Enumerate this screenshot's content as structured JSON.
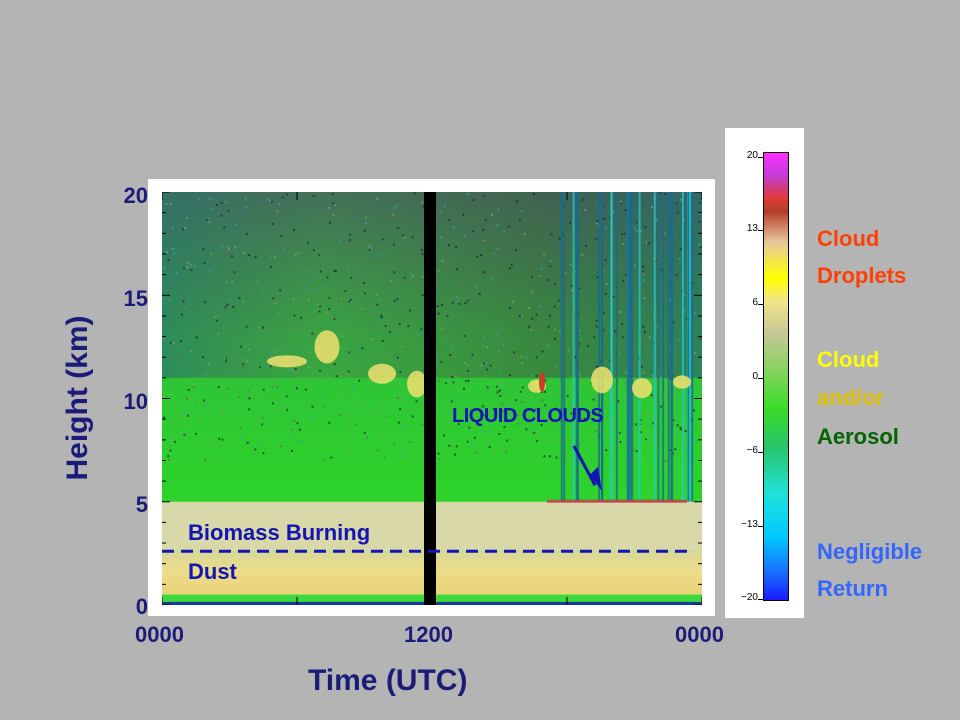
{
  "chart_data": {
    "type": "heatmap",
    "xlabel": "Time (UTC)",
    "ylabel": "Height (km)",
    "x_ticks": [
      "0000",
      "1200",
      "0000"
    ],
    "y_ticks": [
      "0",
      "5",
      "10",
      "15",
      "20"
    ],
    "ylim": [
      0,
      20
    ],
    "colorbar": {
      "range": [
        -20,
        20
      ],
      "ticks": [
        "20",
        "13",
        "6",
        "0",
        "−6",
        "−13",
        "−20"
      ]
    },
    "layers": {
      "dust_top_km": 2.6,
      "biomass_burning_top_km": 5.0,
      "data_gap_utc": 1200
    },
    "annotations": {
      "liquid_clouds": "LIQUID CLOUDS",
      "biomass_burning": "Biomass Burning",
      "dust": "Dust"
    },
    "legend": [
      {
        "text": "Cloud",
        "color": "#ff4000"
      },
      {
        "text": "Droplets",
        "color": "#ff4000"
      },
      {
        "text": "Cloud",
        "color": "#ffff00"
      },
      {
        "text": "and/or",
        "color": "#e0c000"
      },
      {
        "text": "Aerosol",
        "color": "#006400"
      },
      {
        "text": "Negligible",
        "color": "#3366ff"
      },
      {
        "text": "Return",
        "color": "#3366ff"
      }
    ]
  }
}
